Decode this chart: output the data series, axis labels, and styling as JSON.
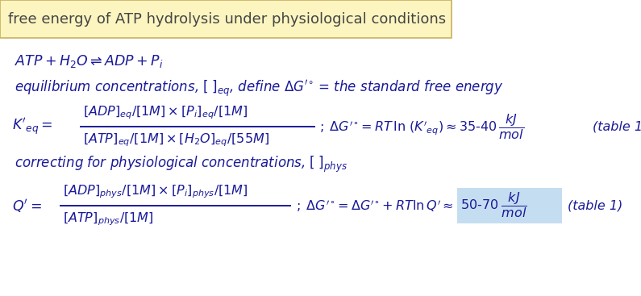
{
  "bg_color": "#ffffff",
  "title_bg_color": "#fdf5c0",
  "title_border_color": "#c8b060",
  "highlight_color": "#c5ddf0",
  "text_color": "#1a1a99",
  "title_text": "free energy of ATP hydrolysis under physiological conditions",
  "fig_width": 7.95,
  "fig_height": 3.67,
  "dpi": 100
}
